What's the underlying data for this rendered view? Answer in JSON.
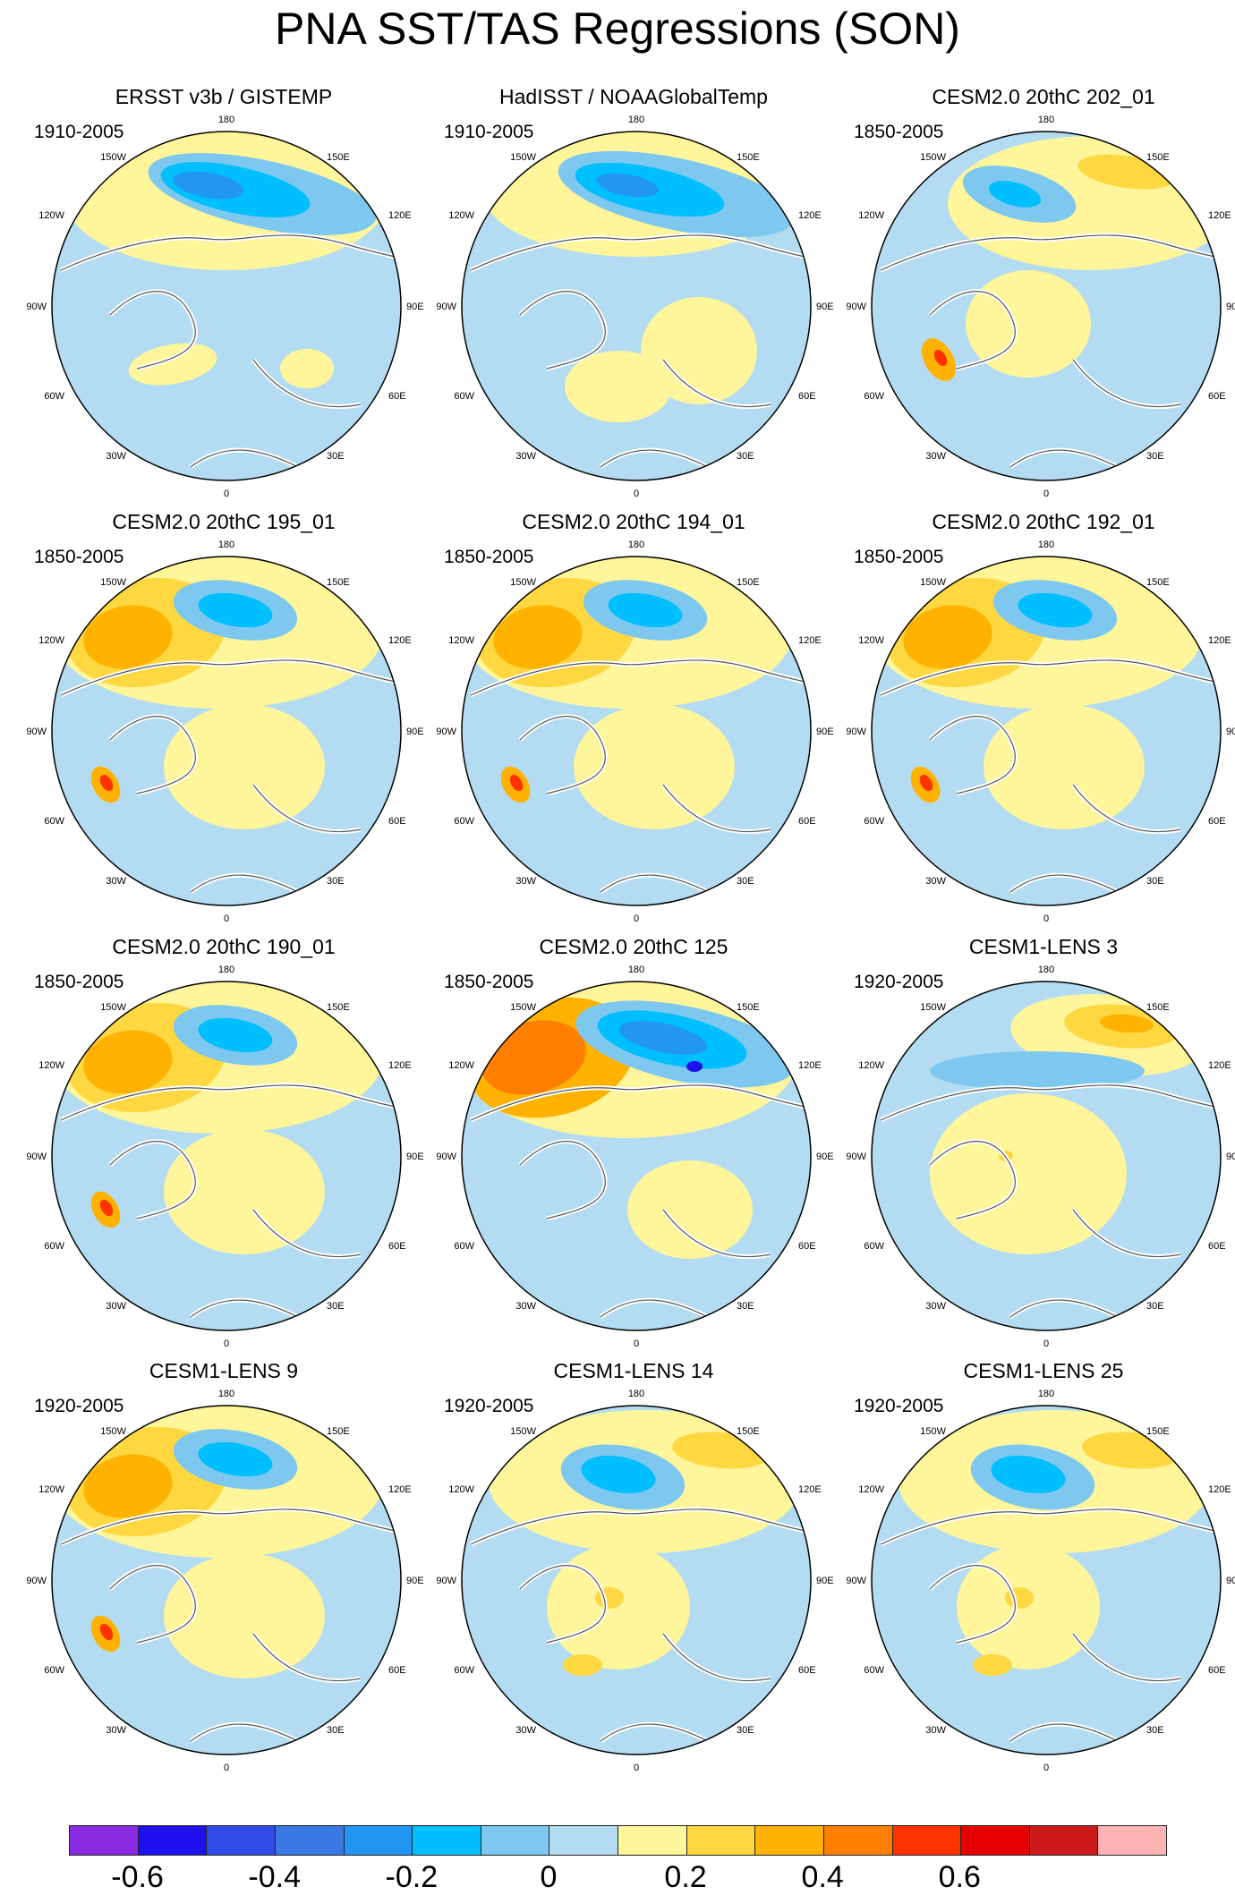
{
  "title": "PNA SST/TAS Regressions (SON)",
  "lon_labels": {
    "top": "180",
    "upper_left": "150W",
    "upper_right": "150E",
    "mid_upper_left": "120W",
    "mid_upper_right": "120E",
    "left": "90W",
    "right": "90E",
    "mid_lower_left": "60W",
    "mid_lower_right": "60E",
    "lower_left": "30W",
    "lower_right": "30E",
    "bottom": "0"
  },
  "panels": [
    {
      "title": "ERSST v3b / GISTEMP",
      "period": "1910-2005",
      "pattern": "obs"
    },
    {
      "title": "HadISST / NOAAGlobalTemp",
      "period": "1910-2005",
      "pattern": "obs2"
    },
    {
      "title": "CESM2.0 20thC 202_01",
      "period": "1850-2005",
      "pattern": "weak"
    },
    {
      "title": "CESM2.0 20thC 195_01",
      "period": "1850-2005",
      "pattern": "strong"
    },
    {
      "title": "CESM2.0 20thC 194_01",
      "period": "1850-2005",
      "pattern": "strong"
    },
    {
      "title": "CESM2.0 20thC 192_01",
      "period": "1850-2005",
      "pattern": "strong"
    },
    {
      "title": "CESM2.0 20thC 190_01",
      "period": "1850-2005",
      "pattern": "strong"
    },
    {
      "title": "CESM2.0 20thC 125",
      "period": "1850-2005",
      "pattern": "verystrong"
    },
    {
      "title": "CESM1-LENS 3",
      "period": "1920-2005",
      "pattern": "inverse"
    },
    {
      "title": "CESM1-LENS 9",
      "period": "1920-2005",
      "pattern": "strong"
    },
    {
      "title": "CESM1-LENS 14",
      "period": "1920-2005",
      "pattern": "moderate"
    },
    {
      "title": "CESM1-LENS 25",
      "period": "1920-2005",
      "pattern": "moderate"
    }
  ],
  "colorbar": {
    "colors": [
      "#8a2be2",
      "#1f10f0",
      "#2f4be8",
      "#3a78e6",
      "#2196f3",
      "#00bfff",
      "#7ec8f0",
      "#b3dcf2",
      "#fff59a",
      "#ffd740",
      "#ffb300",
      "#ff7f00",
      "#ff3300",
      "#e60000",
      "#cc1a1a",
      "#ffb3b3"
    ],
    "labels": [
      "-0.6",
      "-0.4",
      "-0.2",
      "0",
      "0.2",
      "0.4",
      "0.6"
    ],
    "label_values": [
      -0.6,
      -0.4,
      -0.2,
      0,
      0.2,
      0.4,
      0.6
    ]
  }
}
